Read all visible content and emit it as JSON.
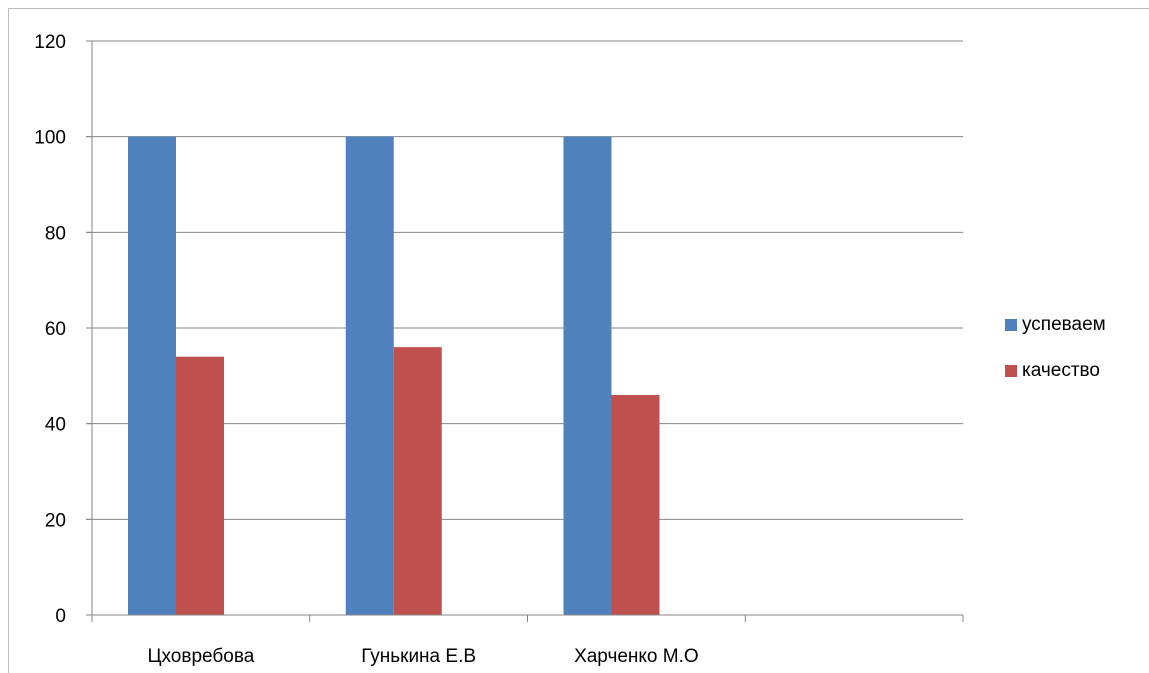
{
  "chart_data": {
    "type": "bar",
    "title": "",
    "xlabel": "",
    "ylabel": "",
    "ylim": [
      0,
      120
    ],
    "yticks": [
      0,
      20,
      40,
      60,
      80,
      100,
      120
    ],
    "grid": true,
    "legend_position": "right",
    "categories": [
      "Цховребова",
      "Гунькина Е.В",
      "Харченко М.О",
      ""
    ],
    "series": [
      {
        "name": "успеваем",
        "color": "#4f81bd",
        "values": [
          100,
          100,
          100,
          null
        ]
      },
      {
        "name": "качество",
        "color": "#c0504d",
        "values": [
          54,
          56,
          46,
          null
        ]
      }
    ]
  }
}
